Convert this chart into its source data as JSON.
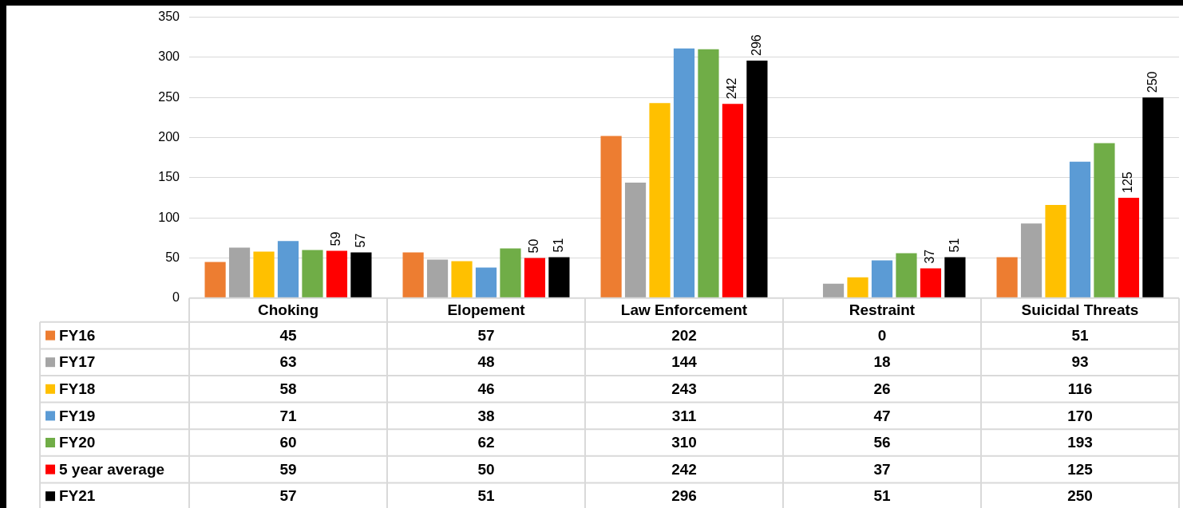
{
  "chart_data": {
    "type": "bar",
    "categories": [
      "Choking",
      "Elopement",
      "Law Enforcement",
      "Restraint",
      "Suicidal Threats"
    ],
    "series": [
      {
        "name": "FY16",
        "color": "#ed7d31",
        "values": [
          45,
          57,
          202,
          0,
          51
        ]
      },
      {
        "name": "FY17",
        "color": "#a5a5a5",
        "values": [
          63,
          48,
          144,
          18,
          93
        ]
      },
      {
        "name": "FY18",
        "color": "#ffc000",
        "values": [
          58,
          46,
          243,
          26,
          116
        ]
      },
      {
        "name": "FY19",
        "color": "#5b9bd5",
        "values": [
          71,
          38,
          311,
          47,
          170
        ]
      },
      {
        "name": "FY20",
        "color": "#70ad47",
        "values": [
          60,
          62,
          310,
          56,
          193
        ]
      },
      {
        "name": "5 year average",
        "color": "#ff0000",
        "values": [
          59,
          50,
          242,
          37,
          125
        ],
        "value_labels": [
          "59",
          "50",
          "242",
          "37",
          "125"
        ]
      },
      {
        "name": "FY21",
        "color": "#000000",
        "values": [
          57,
          51,
          296,
          51,
          250
        ],
        "value_labels": [
          "57",
          "51",
          "296",
          "51",
          "250"
        ]
      }
    ],
    "ylim": [
      0,
      350
    ],
    "yticks": [
      0,
      50,
      100,
      150,
      200,
      250,
      300,
      350
    ],
    "grid": "y",
    "legend": "bottom",
    "data_labels": true
  }
}
